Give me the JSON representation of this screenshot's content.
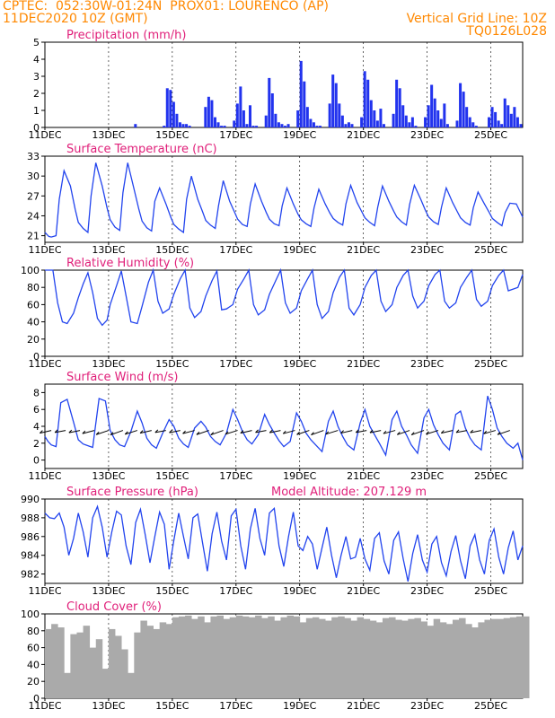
{
  "header": {
    "line1_left": "CPTEC:  052:30W-01:24N  PROX01: LOURENCO (AP)",
    "line2_left": "11DEC2020 10Z (GMT)",
    "line2_right": "Vertical Grid Line: 10Z",
    "line3_right": "TQ0126L028"
  },
  "colors": {
    "header": "#ff8800",
    "title": "#e0207a",
    "line": "#2244ee",
    "bar": "#2233ee",
    "cloud": "#aaaaaa",
    "wind_arrow": "#000000"
  },
  "x_axis": {
    "start": "11DEC2020 10Z",
    "end": "26DEC2020 10Z",
    "tick_labels": [
      "11DEC",
      "13DEC",
      "15DEC",
      "17DEC",
      "19DEC",
      "21DEC",
      "23DEC",
      "25DEC"
    ],
    "tick_days": [
      0,
      2,
      4,
      6,
      8,
      10,
      12,
      14
    ]
  },
  "chart_data": [
    {
      "type": "bar",
      "title": "Precipitation (mm/h)",
      "ylim": [
        0,
        5
      ],
      "yticks": [
        0,
        1,
        2,
        3,
        4,
        5
      ],
      "x_days": [
        2.8,
        3.7,
        3.8,
        3.9,
        4.0,
        4.1,
        4.2,
        4.3,
        4.4,
        4.5,
        5.0,
        5.1,
        5.2,
        5.3,
        5.4,
        5.5,
        5.6,
        5.9,
        6.0,
        6.1,
        6.2,
        6.3,
        6.4,
        6.5,
        6.6,
        6.9,
        7.0,
        7.1,
        7.2,
        7.3,
        7.4,
        7.5,
        7.6,
        7.9,
        8.0,
        8.1,
        8.2,
        8.3,
        8.4,
        8.5,
        8.6,
        8.9,
        9.0,
        9.1,
        9.2,
        9.3,
        9.4,
        9.5,
        9.6,
        9.9,
        10.0,
        10.1,
        10.2,
        10.3,
        10.4,
        10.5,
        10.6,
        10.9,
        11.0,
        11.1,
        11.2,
        11.3,
        11.4,
        11.5,
        11.6,
        11.9,
        12.0,
        12.1,
        12.2,
        12.3,
        12.4,
        12.5,
        12.6,
        12.9,
        13.0,
        13.1,
        13.2,
        13.3,
        13.4,
        13.5,
        13.9,
        14.0,
        14.1,
        14.2,
        14.3,
        14.4,
        14.5,
        14.6,
        14.7,
        14.8,
        14.9
      ],
      "values": [
        0.2,
        0.1,
        2.3,
        2.2,
        1.5,
        0.8,
        0.3,
        0.2,
        0.2,
        0.1,
        1.2,
        1.8,
        1.6,
        0.6,
        0.3,
        0.1,
        0.1,
        0.4,
        1.4,
        2.4,
        1.0,
        0.2,
        1.3,
        0.1,
        0.1,
        0.7,
        2.9,
        2.0,
        0.8,
        0.3,
        0.2,
        0.1,
        0.2,
        1.0,
        3.9,
        2.7,
        1.2,
        0.5,
        0.3,
        0.1,
        0.1,
        1.4,
        3.1,
        2.6,
        1.4,
        0.7,
        0.2,
        0.3,
        0.2,
        0.6,
        3.3,
        2.8,
        1.6,
        1.0,
        0.4,
        1.1,
        0.2,
        0.8,
        2.8,
        2.3,
        1.3,
        0.7,
        0.3,
        0.6,
        0.1,
        0.6,
        1.3,
        2.5,
        1.7,
        1.0,
        0.5,
        1.4,
        0.2,
        0.4,
        2.6,
        2.1,
        1.2,
        0.6,
        0.3,
        0.1,
        0.6,
        1.2,
        0.9,
        0.4,
        0.2,
        1.7,
        1.3,
        0.8,
        1.2,
        0.6,
        0.2
      ]
    },
    {
      "type": "line",
      "title": "Surface Temperature (nC)",
      "ylim": [
        20,
        33
      ],
      "yticks": [
        21,
        24,
        27,
        30,
        33
      ],
      "x_days": [
        0,
        0.12,
        0.2,
        0.35,
        0.45,
        0.6,
        0.8,
        0.95,
        1.05,
        1.2,
        1.35,
        1.45,
        1.6,
        1.8,
        1.95,
        2.05,
        2.2,
        2.35,
        2.45,
        2.6,
        2.8,
        2.95,
        3.05,
        3.2,
        3.35,
        3.45,
        3.6,
        3.8,
        3.95,
        4.05,
        4.2,
        4.35,
        4.45,
        4.6,
        4.8,
        4.95,
        5.05,
        5.2,
        5.35,
        5.45,
        5.6,
        5.8,
        5.95,
        6.05,
        6.2,
        6.35,
        6.45,
        6.6,
        6.8,
        6.95,
        7.05,
        7.2,
        7.35,
        7.45,
        7.6,
        7.8,
        7.95,
        8.05,
        8.2,
        8.35,
        8.45,
        8.6,
        8.8,
        8.95,
        9.05,
        9.2,
        9.35,
        9.45,
        9.6,
        9.8,
        9.95,
        10.05,
        10.2,
        10.35,
        10.45,
        10.6,
        10.8,
        10.95,
        11.05,
        11.2,
        11.35,
        11.45,
        11.6,
        11.8,
        11.95,
        12.05,
        12.2,
        12.35,
        12.45,
        12.6,
        12.8,
        12.95,
        13.05,
        13.2,
        13.35,
        13.45,
        13.6,
        13.8,
        13.95,
        14.05,
        14.2,
        14.35,
        14.45,
        14.6,
        14.8,
        15.0
      ],
      "values": [
        21.5,
        20.9,
        20.8,
        21.0,
        26.5,
        30.8,
        28.5,
        25.0,
        23.0,
        22.1,
        21.5,
        27.0,
        32.0,
        28.5,
        25.2,
        23.4,
        22.3,
        21.8,
        27.5,
        32.0,
        28.0,
        25.0,
        23.2,
        22.2,
        21.7,
        26.2,
        28.2,
        25.8,
        23.8,
        22.7,
        22.0,
        21.5,
        26.5,
        30.0,
        26.5,
        24.6,
        23.3,
        22.6,
        22.1,
        25.5,
        29.3,
        26.2,
        24.6,
        23.5,
        22.7,
        22.4,
        25.8,
        28.8,
        26.2,
        24.5,
        23.5,
        22.8,
        22.5,
        25.5,
        28.2,
        25.8,
        24.2,
        23.4,
        22.8,
        22.4,
        25.2,
        28.0,
        25.8,
        24.4,
        23.6,
        23.0,
        22.6,
        25.8,
        28.6,
        26.0,
        24.6,
        23.7,
        23.0,
        22.5,
        25.3,
        28.5,
        26.2,
        24.7,
        23.8,
        23.1,
        22.6,
        25.7,
        28.6,
        26.5,
        24.8,
        23.8,
        23.1,
        22.7,
        25.3,
        28.2,
        26.0,
        24.6,
        23.7,
        23.0,
        22.6,
        25.2,
        27.6,
        25.8,
        24.5,
        23.6,
        23.0,
        22.5,
        24.5,
        25.9,
        25.8,
        23.8
      ]
    },
    {
      "type": "line",
      "title": "Relative Humidity (%)",
      "ylim": [
        0,
        100
      ],
      "yticks": [
        0,
        20,
        40,
        60,
        80,
        100
      ],
      "x_days": [
        0,
        0.1,
        0.25,
        0.4,
        0.55,
        0.7,
        0.9,
        1.05,
        1.2,
        1.35,
        1.5,
        1.65,
        1.8,
        1.95,
        2.05,
        2.25,
        2.4,
        2.55,
        2.7,
        2.9,
        3.05,
        3.25,
        3.4,
        3.55,
        3.7,
        3.9,
        4.05,
        4.25,
        4.4,
        4.55,
        4.7,
        4.9,
        5.05,
        5.25,
        5.4,
        5.55,
        5.7,
        5.9,
        6.05,
        6.25,
        6.4,
        6.55,
        6.7,
        6.9,
        7.05,
        7.25,
        7.4,
        7.55,
        7.7,
        7.9,
        8.05,
        8.25,
        8.4,
        8.55,
        8.7,
        8.9,
        9.05,
        9.25,
        9.4,
        9.55,
        9.7,
        9.9,
        10.05,
        10.25,
        10.4,
        10.55,
        10.7,
        10.9,
        11.05,
        11.25,
        11.4,
        11.55,
        11.7,
        11.9,
        12.05,
        12.25,
        12.4,
        12.55,
        12.7,
        12.9,
        13.05,
        13.25,
        13.4,
        13.55,
        13.7,
        13.9,
        14.05,
        14.25,
        14.4,
        14.55,
        14.7,
        14.85,
        15.0
      ],
      "values": [
        100,
        100,
        100,
        62,
        40,
        38,
        50,
        68,
        84,
        97,
        74,
        44,
        36,
        42,
        60,
        82,
        99,
        70,
        40,
        38,
        58,
        86,
        100,
        64,
        50,
        55,
        72,
        90,
        100,
        56,
        45,
        52,
        70,
        88,
        99,
        54,
        55,
        60,
        78,
        90,
        100,
        60,
        48,
        54,
        72,
        88,
        100,
        62,
        50,
        56,
        76,
        90,
        100,
        60,
        44,
        52,
        74,
        92,
        100,
        56,
        48,
        60,
        80,
        94,
        100,
        64,
        52,
        60,
        80,
        94,
        100,
        70,
        56,
        64,
        82,
        95,
        100,
        64,
        56,
        62,
        80,
        92,
        100,
        66,
        58,
        64,
        82,
        94,
        100,
        76,
        78,
        80,
        95
      ]
    },
    {
      "type": "line",
      "title": "Surface Wind (m/s)",
      "ylim": [
        -1,
        9
      ],
      "yticks": [
        0,
        2,
        4,
        6,
        8
      ],
      "x_days": [
        0,
        0.1,
        0.2,
        0.35,
        0.5,
        0.7,
        0.9,
        1.05,
        1.2,
        1.35,
        1.5,
        1.7,
        1.9,
        2.05,
        2.2,
        2.35,
        2.5,
        2.7,
        2.9,
        3.05,
        3.2,
        3.35,
        3.5,
        3.7,
        3.9,
        4.05,
        4.2,
        4.35,
        4.5,
        4.7,
        4.9,
        5.05,
        5.2,
        5.35,
        5.5,
        5.7,
        5.9,
        6.05,
        6.2,
        6.35,
        6.5,
        6.7,
        6.9,
        7.05,
        7.2,
        7.35,
        7.5,
        7.7,
        7.9,
        8.05,
        8.2,
        8.35,
        8.5,
        8.7,
        8.9,
        9.05,
        9.2,
        9.35,
        9.5,
        9.7,
        9.9,
        10.05,
        10.2,
        10.35,
        10.5,
        10.7,
        10.9,
        11.05,
        11.2,
        11.35,
        11.5,
        11.7,
        11.9,
        12.05,
        12.2,
        12.35,
        12.5,
        12.7,
        12.9,
        13.05,
        13.2,
        13.35,
        13.5,
        13.7,
        13.9,
        14.05,
        14.2,
        14.35,
        14.5,
        14.7,
        14.85,
        15.0
      ],
      "values": [
        2.8,
        2.2,
        1.8,
        1.6,
        6.8,
        7.2,
        4.5,
        2.4,
        1.9,
        1.7,
        1.5,
        7.3,
        7.0,
        3.5,
        2.4,
        1.8,
        1.6,
        3.4,
        5.8,
        4.4,
        2.6,
        1.8,
        1.4,
        3.2,
        4.8,
        4.0,
        2.6,
        1.9,
        1.5,
        3.8,
        4.6,
        3.9,
        2.8,
        2.2,
        1.8,
        3.2,
        6.0,
        4.8,
        3.4,
        2.4,
        1.9,
        3.0,
        5.4,
        4.2,
        3.2,
        2.3,
        1.6,
        2.2,
        5.6,
        4.6,
        3.2,
        2.4,
        1.8,
        1.0,
        4.6,
        5.8,
        4.0,
        2.8,
        1.8,
        1.2,
        4.4,
        6.0,
        4.0,
        3.0,
        2.0,
        0.6,
        4.8,
        5.8,
        4.0,
        3.0,
        1.8,
        0.8,
        5.0,
        6.0,
        4.2,
        3.0,
        2.0,
        1.2,
        5.4,
        5.8,
        3.8,
        2.6,
        1.8,
        1.2,
        7.6,
        6.0,
        3.8,
        2.8,
        2.0,
        1.4,
        2.0,
        0.0
      ]
    },
    {
      "type": "line",
      "title": "Surface Pressure (hPa)",
      "annotation": "Model Altitude: 207.129 m",
      "ylim": [
        981,
        990
      ],
      "yticks": [
        982,
        984,
        986,
        988,
        990
      ],
      "x_days": [
        0,
        0.15,
        0.3,
        0.45,
        0.6,
        0.75,
        0.9,
        1.05,
        1.2,
        1.35,
        1.5,
        1.65,
        1.8,
        1.95,
        2.1,
        2.25,
        2.4,
        2.55,
        2.7,
        2.85,
        3.0,
        3.15,
        3.3,
        3.45,
        3.6,
        3.75,
        3.9,
        4.05,
        4.2,
        4.35,
        4.5,
        4.65,
        4.8,
        4.95,
        5.1,
        5.25,
        5.4,
        5.55,
        5.7,
        5.85,
        6.0,
        6.15,
        6.3,
        6.45,
        6.6,
        6.75,
        6.9,
        7.05,
        7.2,
        7.35,
        7.5,
        7.65,
        7.8,
        7.95,
        8.1,
        8.25,
        8.4,
        8.55,
        8.7,
        8.85,
        9.0,
        9.15,
        9.3,
        9.45,
        9.6,
        9.75,
        9.9,
        10.05,
        10.2,
        10.35,
        10.5,
        10.65,
        10.8,
        10.95,
        11.1,
        11.25,
        11.4,
        11.55,
        11.7,
        11.85,
        12.0,
        12.15,
        12.3,
        12.45,
        12.6,
        12.75,
        12.9,
        13.05,
        13.2,
        13.35,
        13.5,
        13.65,
        13.8,
        13.95,
        14.1,
        14.25,
        14.4,
        14.55,
        14.7,
        14.85,
        15.0
      ],
      "values": [
        988.5,
        988.0,
        987.9,
        988.5,
        987.0,
        984.0,
        985.8,
        988.5,
        986.5,
        983.8,
        988.0,
        989.2,
        987.0,
        983.8,
        986.5,
        988.7,
        988.3,
        985.0,
        983.0,
        987.5,
        988.9,
        986.2,
        983.2,
        986.0,
        988.6,
        987.3,
        982.5,
        985.6,
        988.5,
        986.0,
        983.6,
        988.0,
        988.4,
        985.3,
        982.3,
        986.3,
        988.6,
        985.5,
        983.5,
        988.2,
        988.9,
        985.0,
        982.5,
        986.8,
        989.0,
        985.8,
        984.0,
        988.5,
        989.0,
        985.0,
        982.8,
        986.0,
        988.6,
        985.0,
        984.5,
        986.0,
        985.2,
        982.5,
        984.8,
        987.0,
        984.0,
        981.6,
        984.0,
        986.0,
        983.6,
        983.8,
        985.8,
        983.6,
        982.4,
        985.8,
        986.4,
        983.4,
        982.0,
        985.6,
        986.5,
        983.6,
        981.2,
        984.2,
        986.2,
        983.5,
        982.2,
        985.2,
        986.0,
        983.2,
        981.8,
        984.4,
        986.1,
        983.4,
        981.5,
        985.0,
        986.2,
        983.5,
        982.0,
        985.6,
        986.8,
        983.8,
        982.0,
        984.8,
        986.6,
        983.5,
        985.0
      ]
    },
    {
      "type": "area",
      "title": "Cloud Cover (%)",
      "ylim": [
        0,
        100
      ],
      "yticks": [
        0,
        20,
        40,
        60,
        80,
        100
      ],
      "x_days": [
        0,
        0.2,
        0.4,
        0.6,
        0.8,
        1.0,
        1.2,
        1.4,
        1.6,
        1.8,
        2.0,
        2.2,
        2.4,
        2.6,
        2.8,
        3.0,
        3.2,
        3.4,
        3.6,
        3.8,
        4.0,
        4.2,
        4.4,
        4.6,
        4.8,
        5.0,
        5.2,
        5.4,
        5.6,
        5.8,
        6.0,
        6.2,
        6.4,
        6.6,
        6.8,
        7.0,
        7.2,
        7.4,
        7.6,
        7.8,
        8.0,
        8.2,
        8.4,
        8.6,
        8.8,
        9.0,
        9.2,
        9.4,
        9.6,
        9.8,
        10.0,
        10.2,
        10.4,
        10.6,
        10.8,
        11.0,
        11.2,
        11.4,
        11.6,
        11.8,
        12.0,
        12.2,
        12.4,
        12.6,
        12.8,
        13.0,
        13.2,
        13.4,
        13.6,
        13.8,
        14.0,
        14.2,
        14.4,
        14.6,
        14.8,
        15.0
      ],
      "values": [
        82,
        88,
        84,
        30,
        76,
        78,
        86,
        60,
        70,
        35,
        82,
        74,
        58,
        30,
        78,
        92,
        86,
        82,
        90,
        88,
        96,
        97,
        98,
        94,
        97,
        90,
        97,
        98,
        94,
        96,
        98,
        97,
        96,
        98,
        95,
        97,
        92,
        96,
        98,
        97,
        90,
        95,
        96,
        94,
        92,
        96,
        97,
        95,
        92,
        96,
        94,
        92,
        90,
        95,
        96,
        93,
        92,
        94,
        95,
        91,
        86,
        94,
        90,
        88,
        93,
        95,
        88,
        84,
        90,
        93,
        94,
        94,
        95,
        96,
        97,
        97
      ]
    }
  ]
}
